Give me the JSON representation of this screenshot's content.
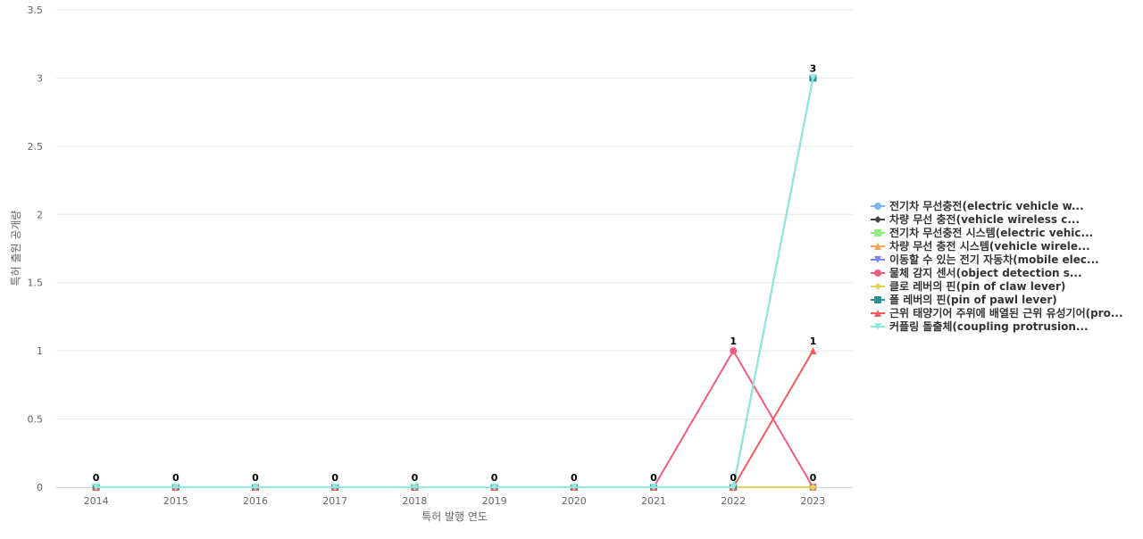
{
  "chart_data": {
    "type": "line",
    "x_label": "특허 발행 연도",
    "y_label": "특허 출원 공개량",
    "categories": [
      "2014",
      "2015",
      "2016",
      "2017",
      "2018",
      "2019",
      "2020",
      "2021",
      "2022",
      "2023"
    ],
    "ylim": [
      0,
      3.5
    ],
    "yticks": [
      0,
      0.5,
      1,
      1.5,
      2,
      2.5,
      3,
      3.5
    ],
    "grid": true,
    "series": [
      {
        "name": "전기차 무선충전(electric vehicle w...",
        "color": "#7cb5ec",
        "marker": "circle",
        "values": [
          0,
          0,
          0,
          0,
          0,
          0,
          0,
          0,
          0,
          0
        ]
      },
      {
        "name": "차량 무선 충전(vehicle wireless c...",
        "color": "#434348",
        "marker": "diamond",
        "values": [
          0,
          0,
          0,
          0,
          0,
          0,
          0,
          0,
          0,
          0
        ]
      },
      {
        "name": "전기차 무선충전 시스템(electric vehic...",
        "color": "#90ed7d",
        "marker": "square",
        "values": [
          0,
          0,
          0,
          0,
          0,
          0,
          0,
          0,
          0,
          0
        ]
      },
      {
        "name": "차량 무선 충전 시스템(vehicle wirele...",
        "color": "#f7a35c",
        "marker": "triangle",
        "values": [
          0,
          0,
          0,
          0,
          0,
          0,
          0,
          0,
          0,
          0
        ]
      },
      {
        "name": "이동할 수 있는 전기 자동차(mobile elec...",
        "color": "#8085e9",
        "marker": "triangle-down",
        "values": [
          0,
          0,
          0,
          0,
          0,
          0,
          0,
          0,
          0,
          0
        ]
      },
      {
        "name": "물체 감지 센서(object detection s...",
        "color": "#f15c80",
        "marker": "circle",
        "values": [
          0,
          0,
          0,
          0,
          0,
          0,
          0,
          0,
          1,
          0
        ]
      },
      {
        "name": "클로 레버의 핀(pin of claw lever)",
        "color": "#e4d354",
        "marker": "diamond",
        "values": [
          0,
          0,
          0,
          0,
          0,
          0,
          0,
          0,
          0,
          0
        ]
      },
      {
        "name": "폴 레버의 핀(pin of pawl lever)",
        "color": "#2b908f",
        "marker": "square",
        "values": [
          0,
          0,
          0,
          0,
          0,
          0,
          0,
          0,
          0,
          3
        ]
      },
      {
        "name": "근위 태양기어 주위에 배열된 근위 유성기어(pro...",
        "color": "#f45b5b",
        "marker": "triangle",
        "values": [
          0,
          0,
          0,
          0,
          0,
          0,
          0,
          0,
          0,
          1
        ]
      },
      {
        "name": "커플링 돌출체(coupling protrusion...",
        "color": "#91e8e1",
        "marker": "triangle-down",
        "values": [
          0,
          0,
          0,
          0,
          0,
          0,
          0,
          0,
          0,
          3
        ]
      }
    ]
  }
}
